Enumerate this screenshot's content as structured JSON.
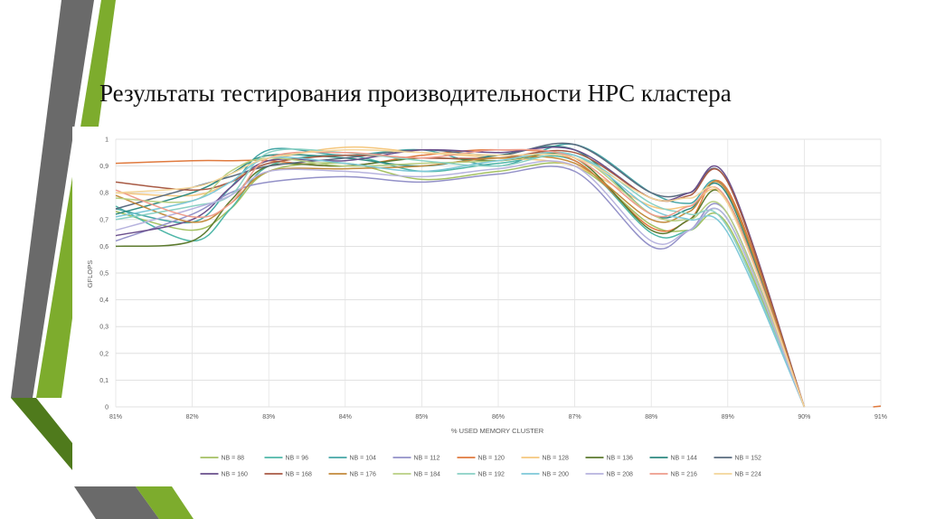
{
  "slide": {
    "title": "Результаты тестирования производительности HPC кластера"
  },
  "colors": {
    "deco_gray": "#6a6a6a",
    "deco_green": "#7dac2d",
    "deco_dark_green": "#4f7a1c"
  },
  "chart_data": {
    "type": "line",
    "title": "",
    "xlabel": "% USED MEMORY CLUSTER",
    "ylabel": "GFLOPS",
    "x_ticks": [
      "81%",
      "82%",
      "83%",
      "84%",
      "85%",
      "86%",
      "87%",
      "88%",
      "89%",
      "90%",
      "91%"
    ],
    "y_ticks": [
      "0",
      "0,1",
      "0,2",
      "0,3",
      "0,4",
      "0,5",
      "0,6",
      "0,7",
      "0,8",
      "0,9",
      "1"
    ],
    "xlim": [
      81,
      91
    ],
    "ylim": [
      0,
      1
    ],
    "grid": true,
    "legend_position": "bottom",
    "x": [
      81,
      82,
      82.5,
      83,
      84,
      85,
      86,
      87,
      88,
      88.5,
      89,
      90
    ],
    "series": [
      {
        "name": "NB = 88",
        "color": "#a4c162",
        "values": [
          0.73,
          0.66,
          0.74,
          0.88,
          0.91,
          0.85,
          0.88,
          0.9,
          0.68,
          0.66,
          0.68,
          0.0
        ]
      },
      {
        "name": "NB = 96",
        "color": "#4fb7a8",
        "values": [
          0.75,
          0.62,
          0.74,
          0.9,
          0.94,
          0.88,
          0.91,
          0.92,
          0.65,
          0.66,
          0.7,
          0.0
        ]
      },
      {
        "name": "NB = 104",
        "color": "#45a6a6",
        "values": [
          0.74,
          0.69,
          0.82,
          0.96,
          0.94,
          0.96,
          0.9,
          0.98,
          0.8,
          0.76,
          0.8,
          0.0
        ]
      },
      {
        "name": "NB = 112",
        "color": "#9391c8",
        "values": [
          0.62,
          0.72,
          0.8,
          0.84,
          0.86,
          0.84,
          0.87,
          0.88,
          0.6,
          0.66,
          0.72,
          0.0
        ]
      },
      {
        "name": "NB = 120",
        "color": "#e07a3e",
        "values": [
          0.91,
          0.92,
          0.92,
          0.92,
          0.9,
          0.94,
          0.96,
          0.92,
          0.67,
          0.7,
          0.81,
          0.0
        ]
      },
      {
        "name": "NB = 128",
        "color": "#f5c77e",
        "values": [
          0.8,
          0.79,
          0.84,
          0.92,
          0.97,
          0.95,
          0.93,
          0.9,
          0.75,
          0.75,
          0.76,
          0.0
        ]
      },
      {
        "name": "NB = 136",
        "color": "#5c7a2e",
        "values": [
          0.6,
          0.62,
          0.77,
          0.9,
          0.9,
          0.93,
          0.92,
          0.93,
          0.66,
          0.7,
          0.77,
          0.0
        ]
      },
      {
        "name": "NB = 144",
        "color": "#2e8a80",
        "values": [
          0.72,
          0.8,
          0.87,
          0.94,
          0.93,
          0.9,
          0.94,
          0.96,
          0.72,
          0.74,
          0.79,
          0.0
        ]
      },
      {
        "name": "NB = 152",
        "color": "#5a6b7f",
        "values": [
          0.74,
          0.82,
          0.86,
          0.9,
          0.93,
          0.96,
          0.94,
          0.98,
          0.8,
          0.8,
          0.84,
          0.0
        ]
      },
      {
        "name": "NB = 160",
        "color": "#6a4f8c",
        "values": [
          0.64,
          0.7,
          0.82,
          0.92,
          0.92,
          0.96,
          0.95,
          0.96,
          0.78,
          0.8,
          0.85,
          0.0
        ]
      },
      {
        "name": "NB = 168",
        "color": "#a85a44",
        "values": [
          0.84,
          0.81,
          0.84,
          0.91,
          0.94,
          0.93,
          0.93,
          0.95,
          0.78,
          0.79,
          0.84,
          0.0
        ]
      },
      {
        "name": "NB = 176",
        "color": "#c28a3c",
        "values": [
          0.79,
          0.69,
          0.76,
          0.88,
          0.89,
          0.9,
          0.93,
          0.91,
          0.7,
          0.73,
          0.8,
          0.0
        ]
      },
      {
        "name": "NB = 184",
        "color": "#b8cf83",
        "values": [
          0.78,
          0.77,
          0.88,
          0.93,
          0.9,
          0.91,
          0.92,
          0.94,
          0.72,
          0.7,
          0.72,
          0.0
        ]
      },
      {
        "name": "NB = 192",
        "color": "#8ad1c4",
        "values": [
          0.7,
          0.75,
          0.79,
          0.95,
          0.95,
          0.92,
          0.9,
          0.94,
          0.76,
          0.72,
          0.67,
          0.0
        ]
      },
      {
        "name": "NB = 200",
        "color": "#7ec8d8",
        "values": [
          0.71,
          0.77,
          0.84,
          0.93,
          0.91,
          0.88,
          0.92,
          0.94,
          0.74,
          0.7,
          0.65,
          0.0
        ]
      },
      {
        "name": "NB = 208",
        "color": "#b7b3de",
        "values": [
          0.66,
          0.74,
          0.79,
          0.88,
          0.88,
          0.86,
          0.89,
          0.9,
          0.62,
          0.66,
          0.7,
          0.0
        ]
      },
      {
        "name": "NB = 216",
        "color": "#ee9c8b",
        "values": [
          0.81,
          0.71,
          0.76,
          0.93,
          0.95,
          0.93,
          0.96,
          0.93,
          0.72,
          0.75,
          0.77,
          0.0
        ]
      },
      {
        "name": "NB = 224",
        "color": "#f3d59a",
        "values": [
          0.8,
          0.82,
          0.87,
          0.93,
          0.96,
          0.95,
          0.94,
          0.93,
          0.78,
          0.78,
          0.76,
          0.0
        ]
      }
    ],
    "tail_segment": {
      "color": "#e07a3e",
      "x": [
        90.9,
        91
      ],
      "values": [
        0.0,
        0.003
      ]
    }
  }
}
